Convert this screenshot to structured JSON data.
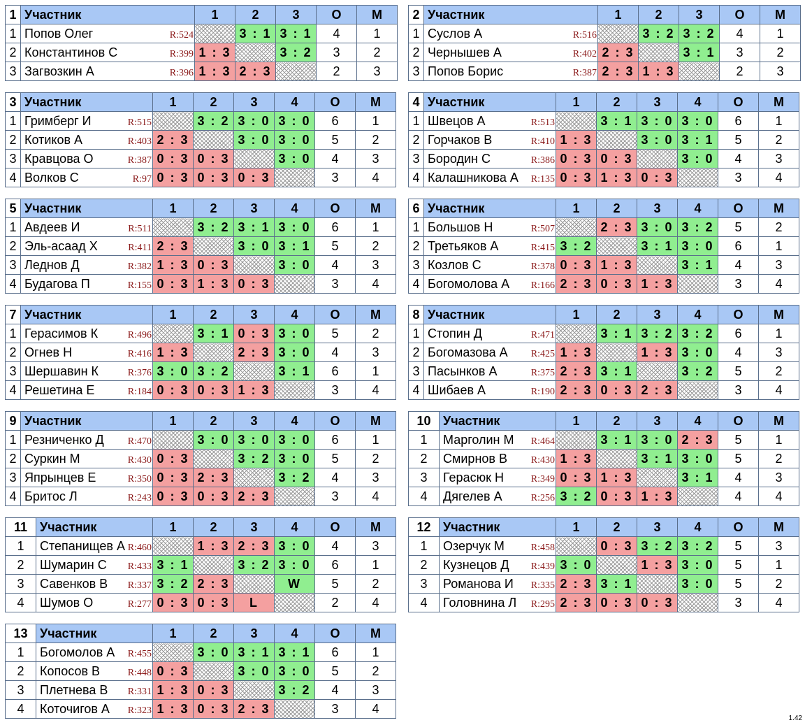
{
  "header": {
    "participant": "Участник",
    "points": "О",
    "place": "М"
  },
  "version": "1.42",
  "groups": [
    {
      "num": "1",
      "players": [
        {
          "idx": "1",
          "name": "Попов Олег",
          "rating": "R:524",
          "results": [
            "",
            "3 : 1",
            "3 : 1"
          ],
          "points": "4",
          "place": "1"
        },
        {
          "idx": "2",
          "name": "Константинов С",
          "rating": "R:399",
          "results": [
            "1 : 3",
            "",
            "3 : 2"
          ],
          "points": "3",
          "place": "2"
        },
        {
          "idx": "3",
          "name": "Загвозкин А",
          "rating": "R:396",
          "results": [
            "1 : 3",
            "2 : 3",
            ""
          ],
          "points": "2",
          "place": "3"
        }
      ]
    },
    {
      "num": "2",
      "players": [
        {
          "idx": "1",
          "name": "Суслов А",
          "rating": "R:516",
          "results": [
            "",
            "3 : 2",
            "3 : 2"
          ],
          "points": "4",
          "place": "1"
        },
        {
          "idx": "2",
          "name": "Чернышев А",
          "rating": "R:402",
          "results": [
            "2 : 3",
            "",
            "3 : 1"
          ],
          "points": "3",
          "place": "2"
        },
        {
          "idx": "3",
          "name": "Попов Борис",
          "rating": "R:387",
          "results": [
            "2 : 3",
            "1 : 3",
            ""
          ],
          "points": "2",
          "place": "3"
        }
      ]
    },
    {
      "num": "3",
      "players": [
        {
          "idx": "1",
          "name": "Гримберг И",
          "rating": "R:515",
          "results": [
            "",
            "3 : 2",
            "3 : 0",
            "3 : 0"
          ],
          "points": "6",
          "place": "1"
        },
        {
          "idx": "2",
          "name": "Котиков А",
          "rating": "R:403",
          "results": [
            "2 : 3",
            "",
            "3 : 0",
            "3 : 0"
          ],
          "points": "5",
          "place": "2"
        },
        {
          "idx": "3",
          "name": "Кравцова О",
          "rating": "R:387",
          "results": [
            "0 : 3",
            "0 : 3",
            "",
            "3 : 0"
          ],
          "points": "4",
          "place": "3"
        },
        {
          "idx": "4",
          "name": "Волков С",
          "rating": "R:97",
          "results": [
            "0 : 3",
            "0 : 3",
            "0 : 3",
            ""
          ],
          "points": "3",
          "place": "4"
        }
      ]
    },
    {
      "num": "4",
      "players": [
        {
          "idx": "1",
          "name": "Швецов А",
          "rating": "R:513",
          "results": [
            "",
            "3 : 1",
            "3 : 0",
            "3 : 0"
          ],
          "points": "6",
          "place": "1"
        },
        {
          "idx": "2",
          "name": "Горчаков В",
          "rating": "R:410",
          "results": [
            "1 : 3",
            "",
            "3 : 0",
            "3 : 1"
          ],
          "points": "5",
          "place": "2"
        },
        {
          "idx": "3",
          "name": "Бородин С",
          "rating": "R:386",
          "results": [
            "0 : 3",
            "0 : 3",
            "",
            "3 : 0"
          ],
          "points": "4",
          "place": "3"
        },
        {
          "idx": "4",
          "name": "Калашникова А",
          "rating": "R:135",
          "results": [
            "0 : 3",
            "1 : 3",
            "0 : 3",
            ""
          ],
          "points": "3",
          "place": "4"
        }
      ]
    },
    {
      "num": "5",
      "players": [
        {
          "idx": "1",
          "name": "Авдеев И",
          "rating": "R:511",
          "results": [
            "",
            "3 : 2",
            "3 : 1",
            "3 : 0"
          ],
          "points": "6",
          "place": "1"
        },
        {
          "idx": "2",
          "name": "Эль-асаад Х",
          "rating": "R:411",
          "results": [
            "2 : 3",
            "",
            "3 : 0",
            "3 : 1"
          ],
          "points": "5",
          "place": "2"
        },
        {
          "idx": "3",
          "name": "Леднов Д",
          "rating": "R:382",
          "results": [
            "1 : 3",
            "0 : 3",
            "",
            "3 : 0"
          ],
          "points": "4",
          "place": "3"
        },
        {
          "idx": "4",
          "name": "Будагова П",
          "rating": "R:155",
          "results": [
            "0 : 3",
            "1 : 3",
            "0 : 3",
            ""
          ],
          "points": "3",
          "place": "4"
        }
      ]
    },
    {
      "num": "6",
      "players": [
        {
          "idx": "1",
          "name": "Большов Н",
          "rating": "R:507",
          "results": [
            "",
            "2 : 3",
            "3 : 0",
            "3 : 2"
          ],
          "points": "5",
          "place": "2"
        },
        {
          "idx": "2",
          "name": "Третьяков А",
          "rating": "R:415",
          "results": [
            "3 : 2",
            "",
            "3 : 1",
            "3 : 0"
          ],
          "points": "6",
          "place": "1"
        },
        {
          "idx": "3",
          "name": "Козлов С",
          "rating": "R:378",
          "results": [
            "0 : 3",
            "1 : 3",
            "",
            "3 : 1"
          ],
          "points": "4",
          "place": "3"
        },
        {
          "idx": "4",
          "name": "Богомолова А",
          "rating": "R:166",
          "results": [
            "2 : 3",
            "0 : 3",
            "1 : 3",
            ""
          ],
          "points": "3",
          "place": "4"
        }
      ]
    },
    {
      "num": "7",
      "players": [
        {
          "idx": "1",
          "name": "Герасимов К",
          "rating": "R:496",
          "results": [
            "",
            "3 : 1",
            "0 : 3",
            "3 : 0"
          ],
          "points": "5",
          "place": "2"
        },
        {
          "idx": "2",
          "name": "Огнев Н",
          "rating": "R:416",
          "results": [
            "1 : 3",
            "",
            "2 : 3",
            "3 : 0"
          ],
          "points": "4",
          "place": "3"
        },
        {
          "idx": "3",
          "name": "Шершавин К",
          "rating": "R:376",
          "results": [
            "3 : 0",
            "3 : 2",
            "",
            "3 : 1"
          ],
          "points": "6",
          "place": "1"
        },
        {
          "idx": "4",
          "name": "Решетина Е",
          "rating": "R:184",
          "results": [
            "0 : 3",
            "0 : 3",
            "1 : 3",
            ""
          ],
          "points": "3",
          "place": "4"
        }
      ]
    },
    {
      "num": "8",
      "players": [
        {
          "idx": "1",
          "name": "Стопин Д",
          "rating": "R:471",
          "results": [
            "",
            "3 : 1",
            "3 : 2",
            "3 : 2"
          ],
          "points": "6",
          "place": "1"
        },
        {
          "idx": "2",
          "name": "Богомазова А",
          "rating": "R:425",
          "results": [
            "1 : 3",
            "",
            "1 : 3",
            "3 : 0"
          ],
          "points": "4",
          "place": "3"
        },
        {
          "idx": "3",
          "name": "Пасынков А",
          "rating": "R:375",
          "results": [
            "2 : 3",
            "3 : 1",
            "",
            "3 : 2"
          ],
          "points": "5",
          "place": "2"
        },
        {
          "idx": "4",
          "name": "Шибаев А",
          "rating": "R:190",
          "results": [
            "2 : 3",
            "0 : 3",
            "2 : 3",
            ""
          ],
          "points": "3",
          "place": "4"
        }
      ]
    },
    {
      "num": "9",
      "players": [
        {
          "idx": "1",
          "name": "Резниченко Д",
          "rating": "R:470",
          "results": [
            "",
            "3 : 0",
            "3 : 0",
            "3 : 0"
          ],
          "points": "6",
          "place": "1"
        },
        {
          "idx": "2",
          "name": "Суркин М",
          "rating": "R:430",
          "results": [
            "0 : 3",
            "",
            "3 : 2",
            "3 : 0"
          ],
          "points": "5",
          "place": "2"
        },
        {
          "idx": "3",
          "name": "Япрынцев Е",
          "rating": "R:350",
          "results": [
            "0 : 3",
            "2 : 3",
            "",
            "3 : 2"
          ],
          "points": "4",
          "place": "3"
        },
        {
          "idx": "4",
          "name": "Бритос Л",
          "rating": "R:243",
          "results": [
            "0 : 3",
            "0 : 3",
            "2 : 3",
            ""
          ],
          "points": "3",
          "place": "4"
        }
      ]
    },
    {
      "num": "10",
      "players": [
        {
          "idx": "1",
          "name": "Марголин М",
          "rating": "R:464",
          "results": [
            "",
            "3 : 1",
            "3 : 0",
            "2 : 3"
          ],
          "points": "5",
          "place": "1"
        },
        {
          "idx": "2",
          "name": "Смирнов В",
          "rating": "R:430",
          "results": [
            "1 : 3",
            "",
            "3 : 1",
            "3 : 0"
          ],
          "points": "5",
          "place": "2"
        },
        {
          "idx": "3",
          "name": "Герасюк Н",
          "rating": "R:349",
          "results": [
            "0 : 3",
            "1 : 3",
            "",
            "3 : 1"
          ],
          "points": "4",
          "place": "3"
        },
        {
          "idx": "4",
          "name": "Дягелев А",
          "rating": "R:256",
          "results": [
            "3 : 2",
            "0 : 3",
            "1 : 3",
            ""
          ],
          "points": "4",
          "place": "4"
        }
      ]
    },
    {
      "num": "11",
      "players": [
        {
          "idx": "1",
          "name": "Степанищев А",
          "rating": "R:460",
          "results": [
            "",
            "1 : 3",
            "2 : 3",
            "3 : 0"
          ],
          "points": "4",
          "place": "3"
        },
        {
          "idx": "2",
          "name": "Шумарин С",
          "rating": "R:433",
          "results": [
            "3 : 1",
            "",
            "3 : 2",
            "3 : 0"
          ],
          "points": "6",
          "place": "1"
        },
        {
          "idx": "3",
          "name": "Савенков В",
          "rating": "R:337",
          "results": [
            "3 : 2",
            "2 : 3",
            "",
            "W"
          ],
          "points": "5",
          "place": "2"
        },
        {
          "idx": "4",
          "name": "Шумов О",
          "rating": "R:277",
          "results": [
            "0 : 3",
            "0 : 3",
            "L",
            ""
          ],
          "points": "2",
          "place": "4"
        }
      ]
    },
    {
      "num": "12",
      "players": [
        {
          "idx": "1",
          "name": "Озерчук М",
          "rating": "R:458",
          "results": [
            "",
            "0 : 3",
            "3 : 2",
            "3 : 2"
          ],
          "points": "5",
          "place": "3"
        },
        {
          "idx": "2",
          "name": "Кузнецов Д",
          "rating": "R:439",
          "results": [
            "3 : 0",
            "",
            "1 : 3",
            "3 : 0"
          ],
          "points": "5",
          "place": "1"
        },
        {
          "idx": "3",
          "name": "Романова И",
          "rating": "R:335",
          "results": [
            "2 : 3",
            "3 : 1",
            "",
            "3 : 0"
          ],
          "points": "5",
          "place": "2"
        },
        {
          "idx": "4",
          "name": "Головнина Л",
          "rating": "R:295",
          "results": [
            "2 : 3",
            "0 : 3",
            "0 : 3",
            ""
          ],
          "points": "3",
          "place": "4"
        }
      ]
    },
    {
      "num": "13",
      "players": [
        {
          "idx": "1",
          "name": "Богомолов А",
          "rating": "R:455",
          "results": [
            "",
            "3 : 0",
            "3 : 1",
            "3 : 1"
          ],
          "points": "6",
          "place": "1"
        },
        {
          "idx": "2",
          "name": "Копосов В",
          "rating": "R:448",
          "results": [
            "0 : 3",
            "",
            "3 : 0",
            "3 : 0"
          ],
          "points": "5",
          "place": "2"
        },
        {
          "idx": "3",
          "name": "Плетнева В",
          "rating": "R:331",
          "results": [
            "1 : 3",
            "0 : 3",
            "",
            "3 : 2"
          ],
          "points": "4",
          "place": "3"
        },
        {
          "idx": "4",
          "name": "Коточигов А",
          "rating": "R:323",
          "results": [
            "1 : 3",
            "0 : 3",
            "2 : 3",
            ""
          ],
          "points": "3",
          "place": "4"
        }
      ]
    }
  ]
}
